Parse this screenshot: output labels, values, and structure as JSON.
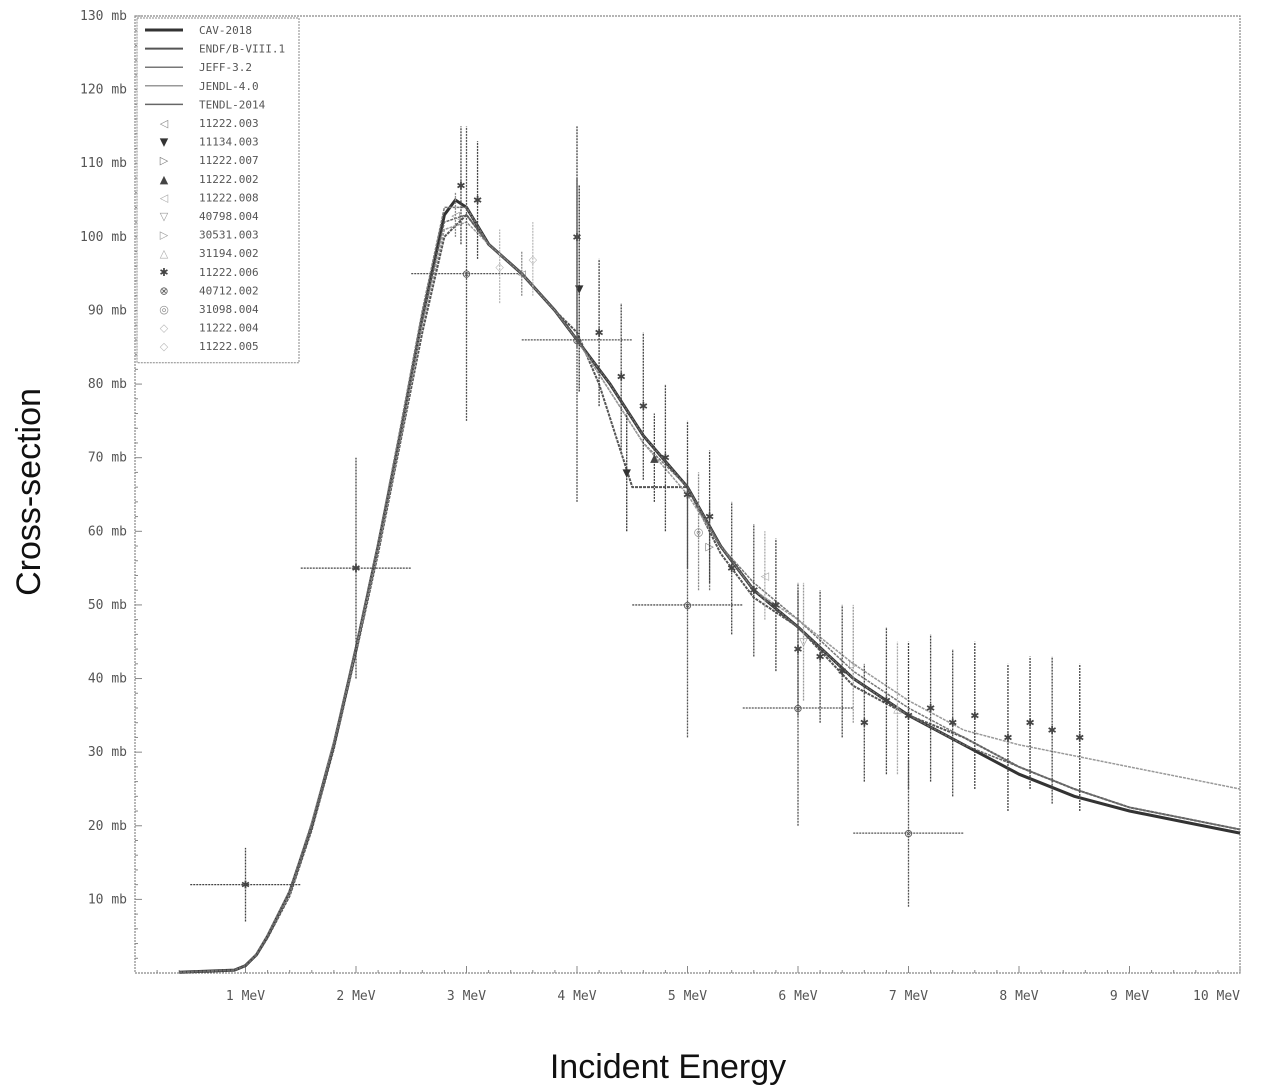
{
  "chart_data": {
    "type": "line",
    "xlabel": "Incident Energy",
    "ylabel": "Cross-section",
    "xlim": [
      0,
      10
    ],
    "ylim": [
      0,
      130
    ],
    "x_ticks": [
      {
        "v": 1,
        "label": "1 MeV"
      },
      {
        "v": 2,
        "label": "2 MeV"
      },
      {
        "v": 3,
        "label": "3 MeV"
      },
      {
        "v": 4,
        "label": "4 MeV"
      },
      {
        "v": 5,
        "label": "5 MeV"
      },
      {
        "v": 6,
        "label": "6 MeV"
      },
      {
        "v": 7,
        "label": "7 MeV"
      },
      {
        "v": 8,
        "label": "8 MeV"
      },
      {
        "v": 9,
        "label": "9 MeV"
      },
      {
        "v": 10,
        "label": "10 MeV"
      }
    ],
    "y_ticks": [
      {
        "v": 10,
        "label": "10 mb"
      },
      {
        "v": 20,
        "label": "20 mb"
      },
      {
        "v": 30,
        "label": "30 mb"
      },
      {
        "v": 40,
        "label": "40 mb"
      },
      {
        "v": 50,
        "label": "50 mb"
      },
      {
        "v": 60,
        "label": "60 mb"
      },
      {
        "v": 70,
        "label": "70 mb"
      },
      {
        "v": 80,
        "label": "80 mb"
      },
      {
        "v": 90,
        "label": "90 mb"
      },
      {
        "v": 100,
        "label": "100 mb"
      },
      {
        "v": 110,
        "label": "110 mb"
      },
      {
        "v": 120,
        "label": "120 mb"
      },
      {
        "v": 130,
        "label": "130 mb"
      }
    ],
    "legend_position": "top-left",
    "colors": {
      "axis": "#888888",
      "text": "#555555",
      "title": "#111111"
    },
    "series": [
      {
        "name": "CAV-2018",
        "kind": "line",
        "color": "#333333",
        "width": 3,
        "x": [
          0.4,
          0.9,
          1.0,
          1.1,
          1.2,
          1.4,
          1.6,
          1.8,
          2.0,
          2.2,
          2.4,
          2.6,
          2.8,
          2.9,
          3.0,
          3.2,
          3.5,
          3.8,
          4.0,
          4.3,
          4.6,
          5.0,
          5.3,
          5.6,
          6.0,
          6.5,
          7.0,
          7.5,
          8.0,
          8.5,
          9.0,
          9.5,
          10.0
        ],
        "y": [
          0.1,
          0.4,
          1,
          2.5,
          5,
          11,
          20,
          31,
          44,
          58,
          73,
          89,
          103,
          105,
          104,
          99,
          95,
          90,
          86,
          80,
          73,
          66,
          58,
          52,
          47,
          40,
          35,
          31,
          27,
          24,
          22,
          20.5,
          19
        ]
      },
      {
        "name": "ENDF/B-VIII.1",
        "kind": "line",
        "color": "#555555",
        "width": 2,
        "x": [
          0.4,
          0.9,
          1.0,
          1.1,
          1.2,
          1.4,
          1.6,
          1.8,
          2.0,
          2.2,
          2.4,
          2.6,
          2.8,
          3.0,
          3.2,
          3.5,
          3.8,
          4.0,
          4.2,
          4.5,
          5.0,
          5.3,
          5.6,
          6.0,
          6.5,
          7.0,
          7.5,
          8.0,
          8.5,
          9.0,
          9.5,
          10.0
        ],
        "y": [
          0.1,
          0.4,
          1,
          2.4,
          4.8,
          10.5,
          19.5,
          30.5,
          43.5,
          57,
          72,
          87,
          100,
          103,
          99,
          95,
          90,
          87,
          80,
          66,
          66,
          57,
          51,
          47,
          39,
          35,
          32,
          28,
          25,
          22.5,
          21,
          19.5
        ]
      },
      {
        "name": "JEFF-3.2",
        "kind": "line",
        "color": "#777777",
        "width": 1.5,
        "x": [
          0.4,
          0.9,
          1.0,
          1.1,
          1.2,
          1.4,
          1.6,
          1.8,
          2.0,
          2.2,
          2.4,
          2.6,
          2.8,
          3.0,
          3.2,
          3.5,
          3.8,
          4.0,
          4.3,
          4.6,
          5.0,
          5.3,
          5.6,
          6.0,
          6.5,
          7.0,
          7.5,
          8.0,
          8.5,
          9.0,
          9.5,
          10.0
        ],
        "y": [
          0.1,
          0.4,
          1,
          2.6,
          5.2,
          11.2,
          20.5,
          31.5,
          44.5,
          58.5,
          74,
          90,
          104,
          104,
          99,
          95,
          90,
          86,
          79,
          72,
          66,
          58,
          53,
          48,
          41,
          36,
          32,
          28,
          25,
          22.5,
          21,
          19.5
        ]
      },
      {
        "name": "JENDL-4.0",
        "kind": "line",
        "color": "#999999",
        "width": 1.5,
        "x": [
          0.4,
          0.9,
          1.0,
          1.1,
          1.2,
          1.4,
          1.6,
          1.8,
          2.0,
          2.2,
          2.4,
          2.6,
          2.8,
          3.0,
          3.2,
          3.5,
          3.8,
          4.0,
          4.3,
          4.6,
          5.0,
          5.3,
          5.6,
          6.0,
          6.5,
          7.0,
          7.5,
          8.0,
          8.5,
          9.0,
          9.5,
          10.0
        ],
        "y": [
          0.1,
          0.4,
          1,
          2.5,
          5,
          10.8,
          20,
          31,
          44,
          57.5,
          72.5,
          88,
          101,
          102,
          99,
          95,
          90,
          86,
          79,
          72,
          65,
          58,
          52,
          48,
          42,
          37,
          33,
          31,
          29.5,
          28,
          26.5,
          25
        ]
      },
      {
        "name": "TENDL-2014",
        "kind": "line",
        "color": "#666666",
        "width": 1.5,
        "x": [
          0.4,
          0.9,
          1.0,
          1.1,
          1.2,
          1.4,
          1.6,
          1.8,
          2.0,
          2.2,
          2.4,
          2.6,
          2.8,
          3.0,
          3.2,
          3.5,
          3.8,
          4.0,
          4.3,
          4.6,
          5.0,
          5.3,
          5.6,
          6.0,
          6.5,
          7.0,
          7.5,
          8.0,
          8.5,
          9.0,
          9.5,
          10.0
        ],
        "y": [
          0.1,
          0.4,
          1,
          2.5,
          5,
          11,
          20,
          31,
          44.5,
          58,
          73,
          89,
          102,
          103,
          99,
          95,
          90,
          86,
          80,
          73,
          66,
          58,
          52,
          47,
          40,
          35,
          31,
          28,
          25,
          22.5,
          21,
          19.5
        ]
      },
      {
        "name": "11222.003",
        "kind": "points",
        "marker": "◁",
        "color": "#888888",
        "points": [
          {
            "x": 2.9,
            "y": 103,
            "e": 3
          },
          {
            "x": 3.5,
            "y": 95,
            "e": 3
          }
        ]
      },
      {
        "name": "11134.003",
        "kind": "points",
        "marker": "▼",
        "color": "#333333",
        "points": [
          {
            "x": 4.02,
            "y": 93,
            "e": 14
          },
          {
            "x": 4.45,
            "y": 68,
            "e": 8
          }
        ]
      },
      {
        "name": "11222.007",
        "kind": "points",
        "marker": "▷",
        "color": "#777777",
        "points": [
          {
            "x": 5.2,
            "y": 58,
            "e": 6
          }
        ]
      },
      {
        "name": "11222.002",
        "kind": "points",
        "marker": "▲",
        "color": "#444444",
        "points": [
          {
            "x": 4.7,
            "y": 70,
            "e": 6
          }
        ]
      },
      {
        "name": "11222.008",
        "kind": "points",
        "marker": "◁",
        "color": "#aaaaaa",
        "points": [
          {
            "x": 5.7,
            "y": 54,
            "e": 6
          }
        ]
      },
      {
        "name": "40798.004",
        "kind": "points",
        "marker": "▽",
        "color": "#999999",
        "points": [
          {
            "x": 6.05,
            "y": 45,
            "e": 8
          }
        ]
      },
      {
        "name": "30531.003",
        "kind": "points",
        "marker": "▷",
        "color": "#999999",
        "points": [
          {
            "x": 6.5,
            "y": 42,
            "e": 8
          }
        ]
      },
      {
        "name": "31194.002",
        "kind": "points",
        "marker": "△",
        "color": "#aaaaaa",
        "points": [
          {
            "x": 6.9,
            "y": 36,
            "e": 9
          }
        ]
      },
      {
        "name": "11222.006",
        "kind": "points",
        "marker": "✱",
        "color": "#444444",
        "points": [
          {
            "x": 1.0,
            "y": 12,
            "e": 5,
            "ex": 0.5
          },
          {
            "x": 2.0,
            "y": 55,
            "e": 15,
            "ex": 0.5
          },
          {
            "x": 2.95,
            "y": 107,
            "e": 8
          },
          {
            "x": 3.1,
            "y": 105,
            "e": 8
          },
          {
            "x": 4.0,
            "y": 100,
            "e": 15
          },
          {
            "x": 4.2,
            "y": 87,
            "e": 10
          },
          {
            "x": 4.4,
            "y": 81,
            "e": 10
          },
          {
            "x": 4.6,
            "y": 77,
            "e": 10
          },
          {
            "x": 4.8,
            "y": 70,
            "e": 10
          },
          {
            "x": 5.0,
            "y": 65,
            "e": 10
          },
          {
            "x": 5.2,
            "y": 62,
            "e": 9
          },
          {
            "x": 5.4,
            "y": 55,
            "e": 9
          },
          {
            "x": 5.6,
            "y": 52,
            "e": 9
          },
          {
            "x": 5.8,
            "y": 50,
            "e": 9
          },
          {
            "x": 6.0,
            "y": 44,
            "e": 9
          },
          {
            "x": 6.2,
            "y": 43,
            "e": 9
          },
          {
            "x": 6.4,
            "y": 41,
            "e": 9
          },
          {
            "x": 6.6,
            "y": 34,
            "e": 8
          },
          {
            "x": 6.8,
            "y": 37,
            "e": 10
          },
          {
            "x": 7.0,
            "y": 35,
            "e": 10
          },
          {
            "x": 7.2,
            "y": 36,
            "e": 10
          },
          {
            "x": 7.4,
            "y": 34,
            "e": 10
          },
          {
            "x": 7.6,
            "y": 35,
            "e": 10
          },
          {
            "x": 7.9,
            "y": 32,
            "e": 10
          },
          {
            "x": 8.1,
            "y": 34,
            "e": 9
          },
          {
            "x": 8.3,
            "y": 33,
            "e": 10
          },
          {
            "x": 8.55,
            "y": 32,
            "e": 10
          }
        ]
      },
      {
        "name": "40712.002",
        "kind": "points",
        "marker": "⊗",
        "color": "#555555",
        "points": [
          {
            "x": 3.0,
            "y": 95,
            "e": 20,
            "ex": 0.5
          },
          {
            "x": 4.0,
            "y": 86,
            "e": 22,
            "ex": 0.5
          },
          {
            "x": 5.0,
            "y": 50,
            "e": 18,
            "ex": 0.5
          },
          {
            "x": 6.0,
            "y": 36,
            "e": 16,
            "ex": 0.5
          },
          {
            "x": 7.0,
            "y": 19,
            "e": 10,
            "ex": 0.5
          }
        ]
      },
      {
        "name": "31098.004",
        "kind": "points",
        "marker": "◎",
        "color": "#888888",
        "points": [
          {
            "x": 5.1,
            "y": 60,
            "e": 8
          }
        ]
      },
      {
        "name": "11222.004",
        "kind": "points",
        "marker": "◇",
        "color": "#bbbbbb",
        "points": [
          {
            "x": 3.3,
            "y": 96,
            "e": 5
          }
        ]
      },
      {
        "name": "11222.005",
        "kind": "points",
        "marker": "◇",
        "color": "#bbbbbb",
        "points": [
          {
            "x": 3.6,
            "y": 97,
            "e": 5
          }
        ]
      }
    ]
  }
}
